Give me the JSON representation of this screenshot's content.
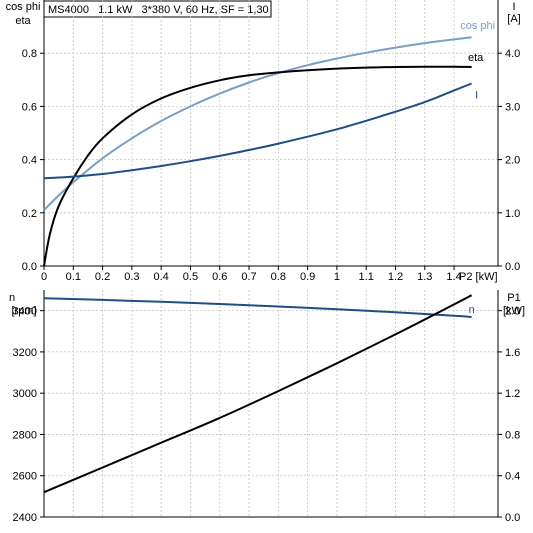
{
  "header": {
    "text": "MS4000   1.1 kW   3*380 V, 60 Hz, SF = 1,30"
  },
  "chart_data": [
    {
      "type": "line",
      "left_axis_label": [
        "cos phi",
        "eta"
      ],
      "right_axis_label": [
        "I",
        "[A]"
      ],
      "x_axis_label": "P2 [kW]",
      "xlim": [
        0,
        1.55
      ],
      "ylim_left": [
        0,
        1.0
      ],
      "ylim_right": [
        0,
        5.0
      ],
      "x_ticks": [
        "0",
        "0.1",
        "0.2",
        "0.3",
        "0.4",
        "0.5",
        "0.6",
        "0.7",
        "0.8",
        "0.9",
        "1",
        "1.1",
        "1.2",
        "1.3",
        "1.4"
      ],
      "x_tick_values": [
        0,
        0.1,
        0.2,
        0.3,
        0.4,
        0.5,
        0.6,
        0.7,
        0.8,
        0.9,
        1.0,
        1.1,
        1.2,
        1.3,
        1.4
      ],
      "left_ticks": [
        0.0,
        0.2,
        0.4,
        0.6,
        0.8
      ],
      "left_tick_labels": [
        "0.0",
        "0.2",
        "0.4",
        "0.6",
        "0.8"
      ],
      "right_ticks": [
        0.0,
        1.0,
        2.0,
        3.0,
        4.0
      ],
      "right_tick_labels": [
        "0.0",
        "1.0",
        "2.0",
        "3.0",
        "4.0"
      ],
      "grid": true,
      "series": [
        {
          "name": "cos phi",
          "axis": "left",
          "color": "#7a9fc4",
          "x": [
            0,
            0.05,
            0.1,
            0.2,
            0.3,
            0.4,
            0.5,
            0.6,
            0.7,
            0.8,
            0.9,
            1.0,
            1.1,
            1.2,
            1.3,
            1.4,
            1.46
          ],
          "y": [
            0.21,
            0.265,
            0.315,
            0.405,
            0.48,
            0.545,
            0.6,
            0.648,
            0.69,
            0.725,
            0.755,
            0.78,
            0.802,
            0.821,
            0.838,
            0.852,
            0.86
          ]
        },
        {
          "name": "eta",
          "axis": "left",
          "color": "#000000",
          "x": [
            0,
            0.02,
            0.05,
            0.1,
            0.15,
            0.2,
            0.3,
            0.4,
            0.5,
            0.6,
            0.7,
            0.8,
            0.9,
            1.0,
            1.1,
            1.2,
            1.3,
            1.4,
            1.46
          ],
          "y": [
            0,
            0.12,
            0.225,
            0.33,
            0.415,
            0.48,
            0.57,
            0.63,
            0.67,
            0.698,
            0.717,
            0.728,
            0.736,
            0.742,
            0.746,
            0.748,
            0.749,
            0.749,
            0.748
          ]
        },
        {
          "name": "I",
          "axis": "right",
          "color": "#1f4e85",
          "x": [
            0,
            0.1,
            0.2,
            0.3,
            0.4,
            0.5,
            0.6,
            0.7,
            0.8,
            0.9,
            1.0,
            1.1,
            1.2,
            1.3,
            1.4,
            1.46
          ],
          "y": [
            1.65,
            1.68,
            1.73,
            1.8,
            1.88,
            1.97,
            2.07,
            2.18,
            2.3,
            2.43,
            2.57,
            2.73,
            2.9,
            3.08,
            3.3,
            3.43
          ]
        }
      ]
    },
    {
      "type": "line",
      "left_axis_label": [
        "n",
        "[rpm]"
      ],
      "right_axis_label": [
        "P1",
        "[kW]"
      ],
      "xlim": [
        0,
        1.55
      ],
      "ylim_left": [
        2400,
        3500
      ],
      "ylim_right": [
        0,
        2.2
      ],
      "left_ticks": [
        2400,
        2600,
        2800,
        3000,
        3200,
        3400
      ],
      "left_tick_labels": [
        "2400",
        "2600",
        "2800",
        "3000",
        "3200",
        "3400"
      ],
      "right_ticks": [
        0,
        0.4,
        0.8,
        1.2,
        1.6,
        2.0
      ],
      "right_tick_labels": [
        "0.0",
        "0.4",
        "0.8",
        "1.2",
        "1.6",
        "2.0"
      ],
      "grid": true,
      "series": [
        {
          "name": "n",
          "axis": "left",
          "color": "#1f4e85",
          "x": [
            0,
            0.2,
            0.4,
            0.6,
            0.8,
            1.0,
            1.2,
            1.4,
            1.46
          ],
          "y": [
            3460,
            3452,
            3443,
            3432,
            3420,
            3407,
            3392,
            3375,
            3369
          ]
        },
        {
          "name": "P1",
          "axis": "right",
          "color": "#000000",
          "x": [
            0,
            0.2,
            0.4,
            0.6,
            0.8,
            1.0,
            1.2,
            1.4,
            1.46
          ],
          "y": [
            0.24,
            0.48,
            0.72,
            0.96,
            1.22,
            1.49,
            1.77,
            2.06,
            2.15
          ]
        }
      ]
    }
  ]
}
